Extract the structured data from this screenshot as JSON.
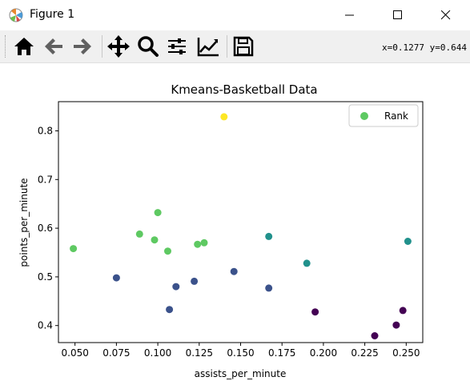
{
  "window": {
    "title": "Figure 1"
  },
  "toolbar": {
    "buttons": [
      {
        "icon": "home-icon",
        "label": "Home"
      },
      {
        "icon": "back-arrow-icon",
        "label": "Back"
      },
      {
        "icon": "forward-arrow-icon",
        "label": "Forward"
      },
      {
        "icon": "pan-move-icon",
        "label": "Pan"
      },
      {
        "icon": "zoom-magnifier-icon",
        "label": "Zoom"
      },
      {
        "icon": "configure-subplots-icon",
        "label": "Subplots"
      },
      {
        "icon": "edit-axis-icon",
        "label": "Customize"
      },
      {
        "icon": "save-floppy-icon",
        "label": "Save"
      }
    ],
    "coordinates": "x=0.1277 y=0.644"
  },
  "chart_data": {
    "type": "scatter",
    "title": "Kmeans-Basketball Data",
    "xlabel": "assists_per_minute",
    "ylabel": "points_per_minute",
    "xlim": [
      0.04,
      0.26
    ],
    "ylim": [
      0.365,
      0.86
    ],
    "xticks": [
      "0.050",
      "0.075",
      "0.100",
      "0.125",
      "0.150",
      "0.175",
      "0.200",
      "0.225",
      "0.250"
    ],
    "xtick_values": [
      0.05,
      0.075,
      0.1,
      0.125,
      0.15,
      0.175,
      0.2,
      0.225,
      0.25
    ],
    "yticks": [
      "0.4",
      "0.5",
      "0.6",
      "0.7",
      "0.8"
    ],
    "ytick_values": [
      0.4,
      0.5,
      0.6,
      0.7,
      0.8
    ],
    "grid": false,
    "legend": {
      "label": "Rank",
      "position": "top-right",
      "color": "#5ec962"
    },
    "colors": {
      "purple": "#440154",
      "blue": "#3b528b",
      "teal": "#21918c",
      "green": "#5ec962",
      "yellow": "#fde725"
    },
    "points": [
      {
        "x": 0.049,
        "y": 0.558,
        "color": "green"
      },
      {
        "x": 0.089,
        "y": 0.588,
        "color": "green"
      },
      {
        "x": 0.098,
        "y": 0.576,
        "color": "green"
      },
      {
        "x": 0.1,
        "y": 0.632,
        "color": "green"
      },
      {
        "x": 0.106,
        "y": 0.553,
        "color": "green"
      },
      {
        "x": 0.124,
        "y": 0.567,
        "color": "green"
      },
      {
        "x": 0.128,
        "y": 0.57,
        "color": "green"
      },
      {
        "x": 0.14,
        "y": 0.829,
        "color": "yellow"
      },
      {
        "x": 0.075,
        "y": 0.498,
        "color": "blue"
      },
      {
        "x": 0.107,
        "y": 0.433,
        "color": "blue"
      },
      {
        "x": 0.111,
        "y": 0.48,
        "color": "blue"
      },
      {
        "x": 0.122,
        "y": 0.491,
        "color": "blue"
      },
      {
        "x": 0.146,
        "y": 0.511,
        "color": "blue"
      },
      {
        "x": 0.167,
        "y": 0.477,
        "color": "blue"
      },
      {
        "x": 0.167,
        "y": 0.583,
        "color": "teal"
      },
      {
        "x": 0.19,
        "y": 0.528,
        "color": "teal"
      },
      {
        "x": 0.251,
        "y": 0.573,
        "color": "teal"
      },
      {
        "x": 0.195,
        "y": 0.428,
        "color": "purple"
      },
      {
        "x": 0.231,
        "y": 0.379,
        "color": "purple"
      },
      {
        "x": 0.244,
        "y": 0.401,
        "color": "purple"
      },
      {
        "x": 0.248,
        "y": 0.431,
        "color": "purple"
      }
    ]
  }
}
